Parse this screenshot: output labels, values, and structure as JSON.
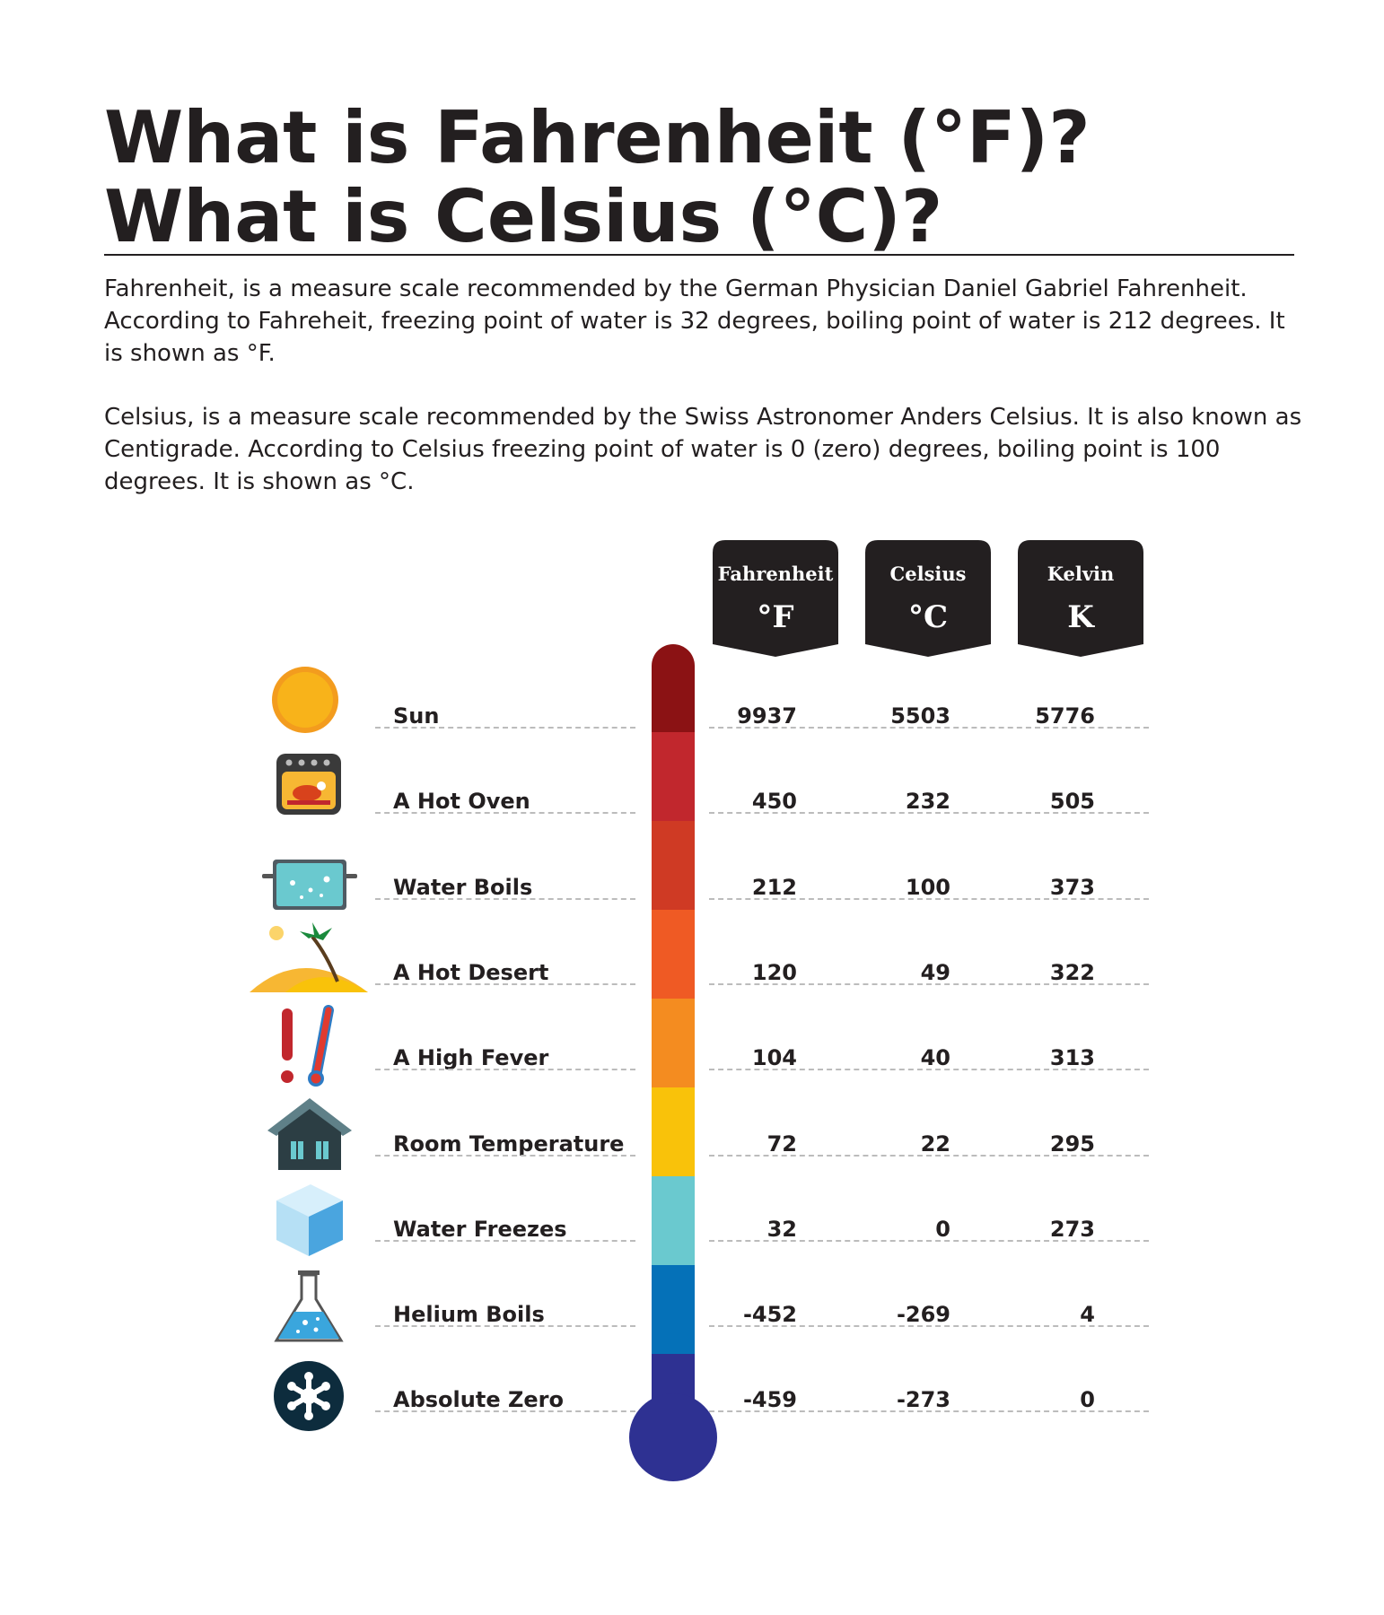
{
  "title": {
    "line1": "What is Fahrenheit (°F)?",
    "line2": "What is Celsius (°C)?"
  },
  "paragraphs": {
    "fahrenheit": "Fahrenheit, is a measure scale recommended by the German Physician Daniel Gabriel Fahrenheit. According to Fahreheit, freezing point of water is 32 degrees, boiling point of water is 212 degrees. It is shown as °F.",
    "celsius": "Celsius, is a measure scale recommended by the Swiss Astronomer Anders Celsius. It is also known as Centigrade. According to Celsius freezing point of water is 0 (zero) degrees, boiling point is 100 degrees. It is shown as °C."
  },
  "columns": [
    {
      "name": "Fahrenheit",
      "unit": "°F"
    },
    {
      "name": "Celsius",
      "unit": "°C"
    },
    {
      "name": "Kelvin",
      "unit": "K"
    }
  ],
  "rows": [
    {
      "label": "Sun",
      "icon": "sun-icon",
      "f": "9937",
      "c": "5503",
      "k": "5776",
      "color": "#8b1214"
    },
    {
      "label": "A Hot Oven",
      "icon": "oven-icon",
      "f": "450",
      "c": "232",
      "k": "505",
      "color": "#c1272d"
    },
    {
      "label": "Water Boils",
      "icon": "boiling-pot-icon",
      "f": "212",
      "c": "100",
      "k": "373",
      "color": "#cf3a24"
    },
    {
      "label": "A Hot Desert",
      "icon": "desert-island-icon",
      "f": "120",
      "c": "49",
      "k": "322",
      "color": "#ef5a24"
    },
    {
      "label": "A High Fever",
      "icon": "fever-thermometer-icon",
      "f": "104",
      "c": "40",
      "k": "313",
      "color": "#f48c20"
    },
    {
      "label": "Room Temperature",
      "icon": "house-icon",
      "f": "72",
      "c": "22",
      "k": "295",
      "color": "#f9c20a"
    },
    {
      "label": "Water Freezes",
      "icon": "ice-cube-icon",
      "f": "32",
      "c": "0",
      "k": "273",
      "color": "#6ac9cf"
    },
    {
      "label": "Helium Boils",
      "icon": "flask-icon",
      "f": "-452",
      "c": "-269",
      "k": "4",
      "color": "#0571b8"
    },
    {
      "label": "Absolute Zero",
      "icon": "snowflake-icon",
      "f": "-459",
      "c": "-273",
      "k": "0",
      "color": "#2e3192"
    }
  ]
}
